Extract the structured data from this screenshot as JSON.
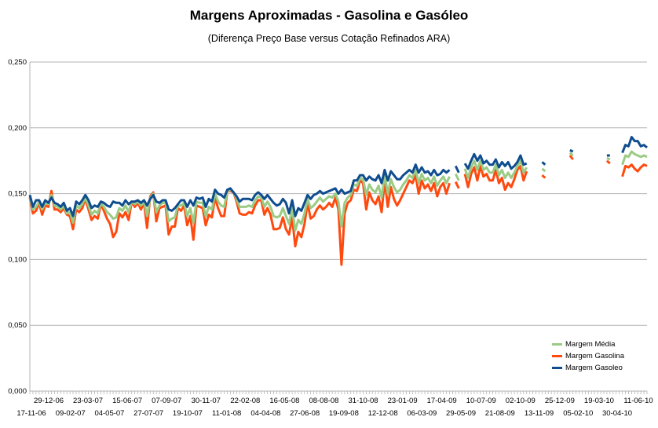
{
  "chart_data": {
    "type": "line",
    "title": "Margens Aproximadas - Gasolina e Gasóleo",
    "subtitle": "(Diferença Preço Base versus Cotação Refinados ARA)",
    "xlabel": "",
    "ylabel": "",
    "ylim": [
      0,
      0.25
    ],
    "y_ticks": [
      "0,000",
      "0,050",
      "0,100",
      "0,150",
      "0,200",
      "0,250"
    ],
    "grid": "horizontal",
    "legend_position": "bottom-right",
    "x_tick_labels_row1": [
      "29-12-06",
      "23-03-07",
      "15-06-07",
      "07-09-07",
      "30-11-07",
      "22-02-08",
      "16-05-08",
      "08-08-08",
      "31-10-08",
      "23-01-09",
      "17-04-09",
      "10-07-09",
      "02-10-09",
      "25-12-09",
      "19-03-10",
      "11-06-10"
    ],
    "x_tick_labels_row2": [
      "17-11-06",
      "09-02-07",
      "04-05-07",
      "27-07-07",
      "19-10-07",
      "11-01-08",
      "04-04-08",
      "27-06-08",
      "19-09-08",
      "12-12-08",
      "06-03-09",
      "29-05-09",
      "21-08-09",
      "13-11-09",
      "05-02-10",
      "30-04-10"
    ],
    "series": [
      {
        "name": "Margem Gasolina",
        "color": "#ff4a0f",
        "values": [
          0.147,
          0.135,
          0.137,
          0.143,
          0.134,
          0.141,
          0.14,
          0.152,
          0.138,
          0.138,
          0.136,
          0.139,
          0.134,
          0.133,
          0.123,
          0.138,
          0.136,
          0.139,
          0.146,
          0.138,
          0.13,
          0.133,
          0.131,
          0.142,
          0.137,
          0.131,
          0.127,
          0.117,
          0.121,
          0.135,
          0.132,
          0.136,
          0.13,
          0.144,
          0.14,
          0.143,
          0.138,
          0.143,
          0.124,
          0.148,
          0.151,
          0.129,
          0.139,
          0.14,
          0.141,
          0.119,
          0.125,
          0.125,
          0.139,
          0.137,
          0.141,
          0.126,
          0.133,
          0.115,
          0.141,
          0.14,
          0.139,
          0.126,
          0.134,
          0.132,
          0.147,
          0.139,
          0.133,
          0.133,
          0.152,
          0.152,
          0.151,
          0.144,
          0.135,
          0.134,
          0.134,
          0.136,
          0.135,
          0.141,
          0.145,
          0.145,
          0.134,
          0.139,
          0.134,
          0.123,
          0.123,
          0.124,
          0.132,
          0.123,
          0.119,
          0.132,
          0.11,
          0.121,
          0.117,
          0.127,
          0.143,
          0.131,
          0.133,
          0.138,
          0.141,
          0.138,
          0.14,
          0.143,
          0.14,
          0.147,
          0.138,
          0.096,
          0.135,
          0.143,
          0.145,
          0.153,
          0.152,
          0.16,
          0.158,
          0.138,
          0.151,
          0.145,
          0.142,
          0.148,
          0.136,
          0.16,
          0.14,
          0.155,
          0.146,
          0.141,
          0.145,
          0.15,
          0.155,
          0.16,
          0.158,
          0.164,
          0.15,
          0.16,
          0.154,
          0.157,
          0.152,
          0.158,
          0.148,
          0.155,
          0.158,
          0.15,
          0.158,
          null,
          0.159,
          0.154,
          null,
          0.165,
          0.155,
          0.165,
          0.17,
          0.16,
          0.171,
          0.163,
          0.165,
          0.16,
          0.16,
          0.168,
          0.158,
          0.162,
          0.153,
          0.158,
          0.155,
          0.161,
          0.168,
          0.171,
          0.16,
          0.167,
          null,
          null,
          null,
          null,
          0.164,
          0.162,
          null,
          null,
          null,
          null,
          null,
          null,
          null,
          0.179,
          0.176,
          null,
          null,
          null,
          null,
          null,
          null,
          null,
          null,
          null,
          null,
          0.175,
          0.173,
          null,
          null,
          null,
          0.163,
          0.171,
          0.17,
          0.172,
          0.169,
          0.167,
          0.17,
          0.172,
          0.171
        ]
      },
      {
        "name": "Margem Média",
        "color": "#9bcb84",
        "values": [
          0.148,
          0.138,
          0.14,
          0.144,
          0.138,
          0.143,
          0.142,
          0.149,
          0.141,
          0.14,
          0.138,
          0.141,
          0.135,
          0.136,
          0.128,
          0.141,
          0.139,
          0.142,
          0.147,
          0.141,
          0.134,
          0.137,
          0.135,
          0.143,
          0.14,
          0.136,
          0.134,
          0.131,
          0.132,
          0.139,
          0.137,
          0.141,
          0.136,
          0.144,
          0.142,
          0.144,
          0.141,
          0.144,
          0.133,
          0.147,
          0.15,
          0.136,
          0.141,
          0.143,
          0.143,
          0.129,
          0.131,
          0.132,
          0.141,
          0.141,
          0.143,
          0.133,
          0.139,
          0.128,
          0.144,
          0.143,
          0.143,
          0.133,
          0.14,
          0.138,
          0.15,
          0.144,
          0.141,
          0.14,
          0.152,
          0.153,
          0.151,
          0.146,
          0.14,
          0.14,
          0.14,
          0.141,
          0.14,
          0.145,
          0.148,
          0.147,
          0.14,
          0.144,
          0.14,
          0.133,
          0.132,
          0.133,
          0.139,
          0.133,
          0.127,
          0.139,
          0.122,
          0.13,
          0.127,
          0.135,
          0.146,
          0.139,
          0.141,
          0.144,
          0.147,
          0.144,
          0.146,
          0.148,
          0.147,
          0.15,
          0.144,
          0.125,
          0.143,
          0.147,
          0.149,
          0.157,
          0.156,
          0.162,
          0.161,
          0.149,
          0.157,
          0.153,
          0.151,
          0.156,
          0.147,
          0.164,
          0.15,
          0.161,
          0.155,
          0.151,
          0.153,
          0.157,
          0.16,
          0.164,
          0.162,
          0.168,
          0.158,
          0.165,
          0.16,
          0.162,
          0.158,
          0.163,
          0.156,
          0.16,
          0.163,
          0.158,
          0.163,
          null,
          0.165,
          0.16,
          null,
          0.169,
          0.162,
          0.17,
          0.175,
          0.168,
          0.175,
          0.168,
          0.17,
          0.166,
          0.166,
          0.172,
          0.164,
          0.168,
          0.162,
          0.166,
          0.162,
          0.166,
          0.171,
          0.175,
          0.166,
          0.17,
          null,
          null,
          null,
          null,
          0.169,
          0.167,
          null,
          null,
          null,
          null,
          null,
          null,
          null,
          0.181,
          0.179,
          null,
          null,
          null,
          null,
          null,
          null,
          null,
          null,
          null,
          null,
          0.177,
          0.176,
          null,
          null,
          null,
          0.172,
          0.179,
          0.178,
          0.182,
          0.18,
          0.179,
          0.178,
          0.179,
          0.178
        ]
      },
      {
        "name": "Margem Gasoleo",
        "color": "#0f4d8f",
        "values": [
          0.149,
          0.14,
          0.145,
          0.145,
          0.14,
          0.145,
          0.143,
          0.147,
          0.143,
          0.142,
          0.14,
          0.143,
          0.137,
          0.139,
          0.133,
          0.144,
          0.142,
          0.145,
          0.149,
          0.145,
          0.139,
          0.141,
          0.14,
          0.144,
          0.143,
          0.141,
          0.14,
          0.144,
          0.143,
          0.143,
          0.141,
          0.145,
          0.142,
          0.144,
          0.144,
          0.145,
          0.143,
          0.145,
          0.141,
          0.146,
          0.149,
          0.144,
          0.143,
          0.145,
          0.145,
          0.138,
          0.137,
          0.139,
          0.142,
          0.145,
          0.145,
          0.14,
          0.145,
          0.141,
          0.147,
          0.146,
          0.147,
          0.14,
          0.146,
          0.144,
          0.153,
          0.15,
          0.149,
          0.147,
          0.153,
          0.154,
          0.151,
          0.148,
          0.144,
          0.146,
          0.146,
          0.146,
          0.145,
          0.149,
          0.151,
          0.149,
          0.146,
          0.149,
          0.146,
          0.143,
          0.141,
          0.142,
          0.146,
          0.143,
          0.135,
          0.145,
          0.133,
          0.139,
          0.137,
          0.143,
          0.149,
          0.146,
          0.149,
          0.15,
          0.152,
          0.15,
          0.151,
          0.152,
          0.153,
          0.154,
          0.15,
          0.153,
          0.15,
          0.151,
          0.152,
          0.16,
          0.16,
          0.164,
          0.164,
          0.16,
          0.163,
          0.161,
          0.16,
          0.164,
          0.158,
          0.168,
          0.16,
          0.167,
          0.164,
          0.161,
          0.161,
          0.164,
          0.166,
          0.168,
          0.166,
          0.172,
          0.166,
          0.17,
          0.166,
          0.167,
          0.164,
          0.168,
          0.164,
          0.165,
          0.168,
          0.166,
          0.168,
          null,
          0.171,
          0.166,
          null,
          0.173,
          0.169,
          0.175,
          0.18,
          0.175,
          0.179,
          0.173,
          0.175,
          0.172,
          0.172,
          0.176,
          0.17,
          0.174,
          0.171,
          0.174,
          0.169,
          0.171,
          0.174,
          0.179,
          0.172,
          0.173,
          null,
          null,
          null,
          null,
          0.174,
          0.172,
          null,
          null,
          null,
          null,
          null,
          null,
          null,
          0.183,
          0.182,
          null,
          null,
          null,
          null,
          null,
          null,
          null,
          null,
          null,
          null,
          0.179,
          0.179,
          null,
          null,
          null,
          0.181,
          0.187,
          0.186,
          0.193,
          0.19,
          0.19,
          0.186,
          0.187,
          0.185
        ]
      }
    ]
  }
}
